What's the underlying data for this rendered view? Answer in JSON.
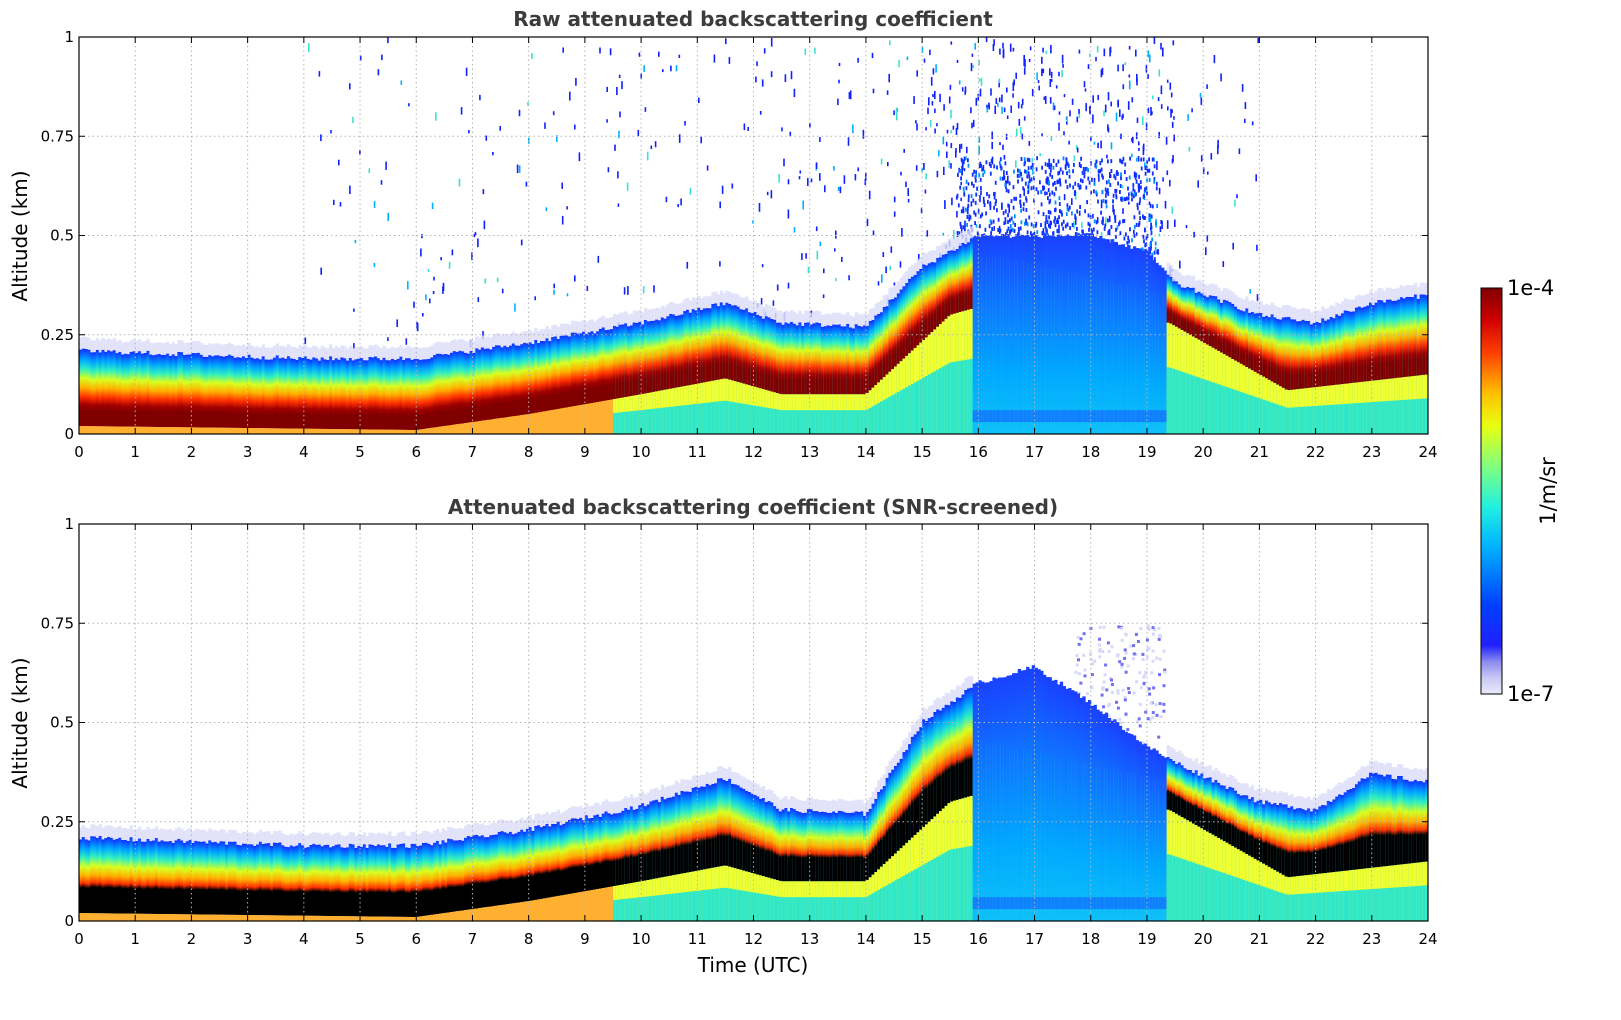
{
  "chart_data": [
    {
      "type": "heatmap",
      "title": "Raw attenuated backscattering coefficient",
      "xlabel": "",
      "ylabel": "Altitude (km)",
      "xlim": [
        0,
        24
      ],
      "ylim": [
        0,
        1
      ],
      "xticks": [
        0,
        1,
        2,
        3,
        4,
        5,
        6,
        7,
        8,
        9,
        10,
        11,
        12,
        13,
        14,
        15,
        16,
        17,
        18,
        19,
        20,
        21,
        22,
        23,
        24
      ],
      "yticks": [
        0,
        0.25,
        0.5,
        0.75,
        1
      ],
      "ytick_labels": [
        "0",
        "0.25",
        "0.5",
        "0.75",
        "1"
      ],
      "grid": true,
      "layer_top_km": [
        [
          0,
          0.21
        ],
        [
          4,
          0.19
        ],
        [
          6,
          0.19
        ],
        [
          8,
          0.23
        ],
        [
          10,
          0.28
        ],
        [
          11.5,
          0.33
        ],
        [
          12.5,
          0.28
        ],
        [
          14,
          0.27
        ],
        [
          15,
          0.42
        ],
        [
          16,
          0.5
        ],
        [
          17,
          0.5
        ],
        [
          18,
          0.5
        ],
        [
          19,
          0.46
        ],
        [
          19.5,
          0.38
        ],
        [
          21,
          0.3
        ],
        [
          22,
          0.28
        ],
        [
          23,
          0.33
        ],
        [
          24,
          0.35
        ]
      ],
      "saturated_core_km": [
        [
          0,
          0.02,
          0.14
        ],
        [
          6,
          0.01,
          0.13
        ],
        [
          8,
          0.05,
          0.16
        ],
        [
          10,
          0.1,
          0.2
        ],
        [
          11.5,
          0.14,
          0.26
        ],
        [
          12.5,
          0.1,
          0.2
        ],
        [
          14,
          0.1,
          0.22
        ],
        [
          15.5,
          0.3,
          0.45
        ],
        [
          16,
          0.32,
          0.46
        ],
        [
          19.4,
          0.28,
          0.35
        ],
        [
          21.5,
          0.11,
          0.22
        ],
        [
          24,
          0.15,
          0.3
        ]
      ],
      "noise_region_hours": [
        4,
        21
      ],
      "colorscale": {
        "min_label": "1e-7",
        "max_label": "1e-4",
        "units": "1/m/sr",
        "log": true
      }
    },
    {
      "type": "heatmap",
      "title": "Attenuated backscattering coefficient (SNR-screened)",
      "xlabel": "Time (UTC)",
      "ylabel": "Altitude (km)",
      "xlim": [
        0,
        24
      ],
      "ylim": [
        0,
        1
      ],
      "xticks": [
        0,
        1,
        2,
        3,
        4,
        5,
        6,
        7,
        8,
        9,
        10,
        11,
        12,
        13,
        14,
        15,
        16,
        17,
        18,
        19,
        20,
        21,
        22,
        23,
        24
      ],
      "yticks": [
        0,
        0.25,
        0.5,
        0.75,
        1
      ],
      "ytick_labels": [
        "0",
        "0.25",
        "0.5",
        "0.75",
        "1"
      ],
      "grid": true,
      "layer_top_km": [
        [
          0,
          0.21
        ],
        [
          4,
          0.19
        ],
        [
          6,
          0.19
        ],
        [
          8,
          0.23
        ],
        [
          10,
          0.29
        ],
        [
          11.5,
          0.36
        ],
        [
          12.5,
          0.28
        ],
        [
          14,
          0.27
        ],
        [
          15,
          0.5
        ],
        [
          16,
          0.6
        ],
        [
          17,
          0.64
        ],
        [
          18,
          0.55
        ],
        [
          19,
          0.44
        ],
        [
          19.5,
          0.4
        ],
        [
          21,
          0.3
        ],
        [
          22,
          0.28
        ],
        [
          23,
          0.37
        ],
        [
          24,
          0.35
        ]
      ],
      "saturated_core_km": [
        [
          0,
          0.02,
          0.14
        ],
        [
          6,
          0.01,
          0.13
        ],
        [
          8,
          0.05,
          0.16
        ],
        [
          10,
          0.1,
          0.2
        ],
        [
          11.5,
          0.14,
          0.26
        ],
        [
          12.5,
          0.1,
          0.2
        ],
        [
          14,
          0.1,
          0.22
        ],
        [
          15.5,
          0.3,
          0.45
        ],
        [
          16,
          0.32,
          0.46
        ],
        [
          19.4,
          0.28,
          0.35
        ],
        [
          21.5,
          0.11,
          0.22
        ],
        [
          24,
          0.15,
          0.3
        ]
      ],
      "colorscale": {
        "min_label": "1e-7",
        "max_label": "1e-4",
        "units": "1/m/sr",
        "log": true
      }
    }
  ],
  "colorbar": {
    "top_label": "1e-4",
    "bottom_label": "1e-7",
    "units": "1/m/sr"
  },
  "colors": {
    "saturated_raw": "#800000",
    "saturated_screened": "#000000",
    "grid": "#b4b4b4",
    "title": "#3c3c3c"
  }
}
